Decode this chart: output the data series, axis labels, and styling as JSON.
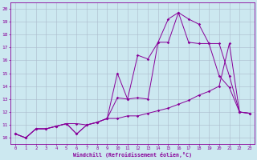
{
  "xlabel": "Windchill (Refroidissement éolien,°C)",
  "bg_color": "#cce8f0",
  "grid_color": "#aabbcc",
  "line_color": "#880099",
  "xlim": [
    -0.5,
    23.5
  ],
  "ylim": [
    9.5,
    20.5
  ],
  "xticks": [
    0,
    1,
    2,
    3,
    4,
    5,
    6,
    7,
    8,
    9,
    10,
    11,
    12,
    13,
    14,
    15,
    16,
    17,
    18,
    19,
    20,
    21,
    22,
    23
  ],
  "yticks": [
    10,
    11,
    12,
    13,
    14,
    15,
    16,
    17,
    18,
    19,
    20
  ],
  "line1_x": [
    0,
    1,
    2,
    3,
    4,
    5,
    6,
    7,
    8,
    9,
    10,
    11,
    12,
    13,
    14,
    15,
    16,
    17,
    18,
    19,
    20,
    21,
    22,
    23
  ],
  "line1_y": [
    10.3,
    10.0,
    10.7,
    10.7,
    10.9,
    11.1,
    10.3,
    11.0,
    11.2,
    11.5,
    13.1,
    13.0,
    16.4,
    16.1,
    17.4,
    19.2,
    19.7,
    19.2,
    18.8,
    17.3,
    14.8,
    13.9,
    12.0,
    11.9
  ],
  "line2_x": [
    0,
    1,
    2,
    3,
    4,
    5,
    6,
    7,
    8,
    9,
    10,
    11,
    12,
    13,
    14,
    15,
    16,
    17,
    18,
    19,
    20,
    21,
    22,
    23
  ],
  "line2_y": [
    10.3,
    10.0,
    10.7,
    10.7,
    10.9,
    11.1,
    10.3,
    11.0,
    11.2,
    11.5,
    15.0,
    13.0,
    13.1,
    13.0,
    17.4,
    17.4,
    19.7,
    17.4,
    17.3,
    17.3,
    17.3,
    14.8,
    12.0,
    11.9
  ],
  "line3_x": [
    0,
    1,
    2,
    3,
    4,
    5,
    6,
    7,
    8,
    9,
    10,
    11,
    12,
    13,
    14,
    15,
    16,
    17,
    18,
    19,
    20,
    21,
    22,
    23
  ],
  "line3_y": [
    10.3,
    10.0,
    10.7,
    10.7,
    10.9,
    11.1,
    11.1,
    11.0,
    11.2,
    11.5,
    11.5,
    11.7,
    11.7,
    11.9,
    12.1,
    12.3,
    12.6,
    12.9,
    13.3,
    13.6,
    14.0,
    17.3,
    12.0,
    11.9
  ]
}
